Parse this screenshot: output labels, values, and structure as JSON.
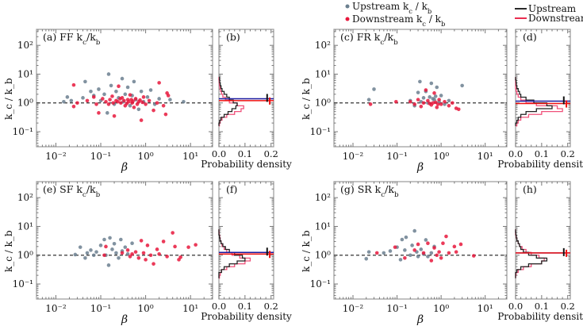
{
  "legend_scatter": [
    {
      "label": "Upstream k_c / k_b",
      "color": "#6b7f8f"
    },
    {
      "label": "Downstream k_c / k_b",
      "color": "#e8173c"
    }
  ],
  "legend_hist": [
    {
      "label": "Upstream",
      "color": "#111111"
    },
    {
      "label": "Downstream",
      "color": "#e8173c"
    }
  ],
  "colors": {
    "upstream": "#6b7f8f",
    "downstream": "#e8173c",
    "mean_up": "#1a1aa0",
    "mean_down": "#ee1111",
    "hist_up": "#222222",
    "hist_down": "#f0507a"
  },
  "chart_data": [
    {
      "type": "scatter",
      "title": "(a) FF k_c/k_b",
      "hist_title": "(b)",
      "xlabel": "β",
      "ylabel": "k_c / k_b",
      "hist_xlabel": "Probability density",
      "xscale": "log",
      "yscale": "log",
      "xlim": [
        0.0037,
        31
      ],
      "ylim": [
        0.03,
        360
      ],
      "hist_xlim": [
        0,
        0.21
      ],
      "reference_line_y": 1,
      "upstream": [
        [
          0.015,
          1.1
        ],
        [
          0.018,
          1.6
        ],
        [
          0.022,
          1.2
        ],
        [
          0.04,
          1.5
        ],
        [
          0.045,
          5.5
        ],
        [
          0.06,
          2.5
        ],
        [
          0.07,
          1.8
        ],
        [
          0.09,
          3
        ],
        [
          0.1,
          1.2
        ],
        [
          0.12,
          2
        ],
        [
          0.14,
          0.45
        ],
        [
          0.15,
          10
        ],
        [
          0.17,
          4
        ],
        [
          0.2,
          0.9
        ],
        [
          0.22,
          2.5
        ],
        [
          0.25,
          1.5
        ],
        [
          0.3,
          7
        ],
        [
          0.32,
          1.1
        ],
        [
          0.35,
          2
        ],
        [
          0.4,
          3.5
        ],
        [
          0.45,
          0.8
        ],
        [
          0.5,
          1.8
        ],
        [
          0.55,
          5.5
        ],
        [
          0.6,
          1.3
        ],
        [
          0.7,
          0.6
        ],
        [
          0.8,
          2.5
        ],
        [
          0.9,
          1.1
        ],
        [
          1.1,
          1.6
        ],
        [
          1.3,
          2.8
        ],
        [
          1.6,
          0.9
        ],
        [
          2,
          1.4
        ],
        [
          3.5,
          1.3
        ],
        [
          7,
          1.1
        ]
      ],
      "downstream": [
        [
          0.025,
          0.75
        ],
        [
          0.025,
          4.2
        ],
        [
          0.03,
          1.0
        ],
        [
          0.05,
          1.2
        ],
        [
          0.07,
          1.6
        ],
        [
          0.08,
          0.9
        ],
        [
          0.09,
          0.45
        ],
        [
          0.11,
          1.4
        ],
        [
          0.13,
          1.1
        ],
        [
          0.15,
          0.9
        ],
        [
          0.18,
          1.7
        ],
        [
          0.2,
          0.35
        ],
        [
          0.22,
          1.2
        ],
        [
          0.25,
          3.8
        ],
        [
          0.28,
          1.0
        ],
        [
          0.3,
          1.5
        ],
        [
          0.35,
          0.8
        ],
        [
          0.4,
          1.3
        ],
        [
          0.45,
          1.9
        ],
        [
          0.5,
          1.0
        ],
        [
          0.55,
          0.7
        ],
        [
          0.6,
          1.4
        ],
        [
          0.7,
          1.1
        ],
        [
          0.8,
          0.25
        ],
        [
          0.9,
          1.6
        ],
        [
          1.0,
          0.9
        ],
        [
          1.2,
          1.2
        ],
        [
          1.5,
          0.55
        ],
        [
          1.8,
          1.0
        ],
        [
          2,
          5
        ],
        [
          2.5,
          0.8
        ],
        [
          2.8,
          0.4
        ],
        [
          3,
          2.2
        ],
        [
          3.2,
          1.8
        ],
        [
          0.16,
          1.3
        ],
        [
          0.19,
          1.0
        ],
        [
          0.24,
          1.1
        ],
        [
          0.27,
          1.4
        ],
        [
          0.33,
          1.2
        ],
        [
          0.38,
          0.95
        ],
        [
          0.42,
          1.1
        ],
        [
          0.48,
          1.3
        ],
        [
          0.52,
          1.15
        ],
        [
          0.65,
          0.9
        ],
        [
          0.75,
          1.25
        ],
        [
          0.85,
          1.05
        ]
      ],
      "hist_log10_bin_centers": [
        -0.75,
        -0.65,
        -0.55,
        -0.45,
        -0.35,
        -0.25,
        -0.15,
        -0.05,
        0.05,
        0.15,
        0.25,
        0.35,
        0.45,
        0.55,
        0.65,
        0.75,
        0.85
      ],
      "hist_upstream": [
        0,
        0.003,
        0.008,
        0.02,
        0.035,
        0.05,
        0.065,
        0.07,
        0.055,
        0.04,
        0.03,
        0.02,
        0.012,
        0.008,
        0.005,
        0.003,
        0.002
      ],
      "hist_downstream": [
        0.002,
        0.005,
        0.012,
        0.03,
        0.06,
        0.085,
        0.095,
        0.07,
        0.04,
        0.025,
        0.015,
        0.01,
        0.006,
        0.004,
        0.002,
        0.001,
        0
      ],
      "mean_upstream": 1.4,
      "mean_downstream": 1.2,
      "xticks": [
        {
          "v": 0.01,
          "label": "10⁻²"
        },
        {
          "v": 0.1,
          "label": "10⁻¹"
        },
        {
          "v": 1,
          "label": "10⁰"
        },
        {
          "v": 10,
          "label": "10¹"
        }
      ],
      "yticks": [
        {
          "v": 0.1,
          "label": "10⁻¹"
        },
        {
          "v": 1,
          "label": "10⁰"
        },
        {
          "v": 10,
          "label": "10¹"
        },
        {
          "v": 100,
          "label": "10²"
        }
      ],
      "hist_xticks": [
        {
          "v": 0,
          "label": "0.0"
        },
        {
          "v": 0.1,
          "label": "0.1"
        },
        {
          "v": 0.2,
          "label": "0.2"
        }
      ]
    },
    {
      "type": "scatter",
      "title": "(c) FR k_c/k_b",
      "hist_title": "(d)",
      "xlabel": "β",
      "ylabel": "k_c / k_b",
      "hist_xlabel": "Probability density",
      "xscale": "log",
      "yscale": "log",
      "xlim": [
        0.0037,
        31
      ],
      "ylim": [
        0.03,
        360
      ],
      "hist_xlim": [
        0,
        0.21
      ],
      "reference_line_y": 1,
      "upstream": [
        [
          0.023,
          1.3
        ],
        [
          0.03,
          3
        ],
        [
          0.2,
          1.2
        ],
        [
          0.25,
          0.8
        ],
        [
          0.3,
          2.3
        ],
        [
          0.33,
          5.5
        ],
        [
          0.4,
          1.5
        ],
        [
          0.45,
          2.5
        ],
        [
          0.5,
          1.0
        ],
        [
          0.55,
          1.6
        ],
        [
          0.6,
          4.8
        ],
        [
          0.7,
          1.3
        ],
        [
          0.8,
          3.5
        ],
        [
          0.9,
          1.1
        ],
        [
          1.0,
          1.8
        ],
        [
          1.2,
          0.9
        ],
        [
          1.5,
          1.2
        ],
        [
          3,
          4
        ],
        [
          0.35,
          1.1
        ],
        [
          0.65,
          1.4
        ],
        [
          0.75,
          1.7
        ]
      ],
      "downstream": [
        [
          0.025,
          0.9
        ],
        [
          0.095,
          1.1
        ],
        [
          0.2,
          1.1
        ],
        [
          0.25,
          0.9
        ],
        [
          0.3,
          1.3
        ],
        [
          0.35,
          0.75
        ],
        [
          0.4,
          1.0
        ],
        [
          0.45,
          2.8
        ],
        [
          0.5,
          1.2
        ],
        [
          0.6,
          0.85
        ],
        [
          0.65,
          1.0
        ],
        [
          0.7,
          2.2
        ],
        [
          0.8,
          0.7
        ],
        [
          0.9,
          1.3
        ],
        [
          1.0,
          0.9
        ],
        [
          1.2,
          1.1
        ],
        [
          1.5,
          0.8
        ],
        [
          1.8,
          1.0
        ],
        [
          2.2,
          0.65
        ],
        [
          2.5,
          0.6
        ],
        [
          0.55,
          0.95
        ],
        [
          0.75,
          1.05
        ],
        [
          0.85,
          0.9
        ]
      ],
      "hist_log10_bin_centers": [
        -0.75,
        -0.65,
        -0.55,
        -0.45,
        -0.35,
        -0.25,
        -0.15,
        -0.05,
        0.05,
        0.15,
        0.25,
        0.35,
        0.45,
        0.55,
        0.65,
        0.75,
        0.85
      ],
      "hist_upstream": [
        0,
        0.005,
        0.01,
        0.02,
        0.04,
        0.08,
        0.14,
        0.12,
        0.07,
        0.04,
        0.02,
        0.015,
        0.01,
        0.005,
        0.003,
        0.002,
        0
      ],
      "hist_downstream": [
        0.005,
        0.01,
        0.02,
        0.05,
        0.1,
        0.18,
        0.16,
        0.08,
        0.04,
        0.02,
        0.01,
        0.005,
        0.002,
        0,
        0,
        0,
        0
      ],
      "mean_upstream": 1.15,
      "mean_downstream": 0.95,
      "xticks": [
        {
          "v": 0.01,
          "label": "10⁻²"
        },
        {
          "v": 0.1,
          "label": "10⁻¹"
        },
        {
          "v": 1,
          "label": "10⁰"
        },
        {
          "v": 10,
          "label": "10¹"
        }
      ],
      "yticks": [
        {
          "v": 0.1,
          "label": "10⁻¹"
        },
        {
          "v": 1,
          "label": "10⁰"
        },
        {
          "v": 10,
          "label": "10¹"
        },
        {
          "v": 100,
          "label": "10²"
        }
      ],
      "hist_xticks": [
        {
          "v": 0,
          "label": "0.0"
        },
        {
          "v": 0.1,
          "label": "0.1"
        },
        {
          "v": 0.2,
          "label": "0.2"
        }
      ]
    },
    {
      "type": "scatter",
      "title": "(e) SF k_c/k_b",
      "hist_title": "(f)",
      "xlabel": "β",
      "ylabel": "k_c / k_b",
      "hist_xlabel": "Probability density",
      "xscale": "log",
      "yscale": "log",
      "xlim": [
        0.0037,
        31
      ],
      "ylim": [
        0.03,
        360
      ],
      "hist_xlim": [
        0,
        0.21
      ],
      "reference_line_y": 1,
      "upstream": [
        [
          0.027,
          1.05
        ],
        [
          0.035,
          1.9
        ],
        [
          0.045,
          0.8
        ],
        [
          0.05,
          1.2
        ],
        [
          0.06,
          1.5
        ],
        [
          0.07,
          1.0
        ],
        [
          0.08,
          1.3
        ],
        [
          0.1,
          2.2
        ],
        [
          0.12,
          3.5
        ],
        [
          0.13,
          1.0
        ],
        [
          0.15,
          0.45
        ],
        [
          0.16,
          4
        ],
        [
          0.18,
          1.6
        ],
        [
          0.2,
          2.5
        ],
        [
          0.22,
          1.2
        ],
        [
          0.25,
          0.8
        ],
        [
          0.28,
          3.5
        ],
        [
          0.3,
          1.4
        ],
        [
          0.35,
          1.9
        ],
        [
          0.4,
          1.1
        ],
        [
          0.5,
          2.6
        ]
      ],
      "downstream": [
        [
          0.12,
          1.0
        ],
        [
          0.13,
          2
        ],
        [
          0.3,
          1.2
        ],
        [
          0.4,
          1.5
        ],
        [
          0.45,
          0.9
        ],
        [
          0.5,
          1.1
        ],
        [
          0.6,
          1.3
        ],
        [
          0.7,
          0.8
        ],
        [
          0.8,
          3.2
        ],
        [
          0.9,
          1.2
        ],
        [
          1.0,
          0.7
        ],
        [
          1.1,
          2.2
        ],
        [
          1.3,
          1.0
        ],
        [
          1.5,
          0.5
        ],
        [
          1.8,
          1.6
        ],
        [
          2,
          1.1
        ],
        [
          2.5,
          3
        ],
        [
          3,
          0.9
        ],
        [
          4,
          6
        ],
        [
          4.5,
          2
        ],
        [
          5.5,
          0.7
        ],
        [
          6,
          0.85
        ],
        [
          9,
          1.9
        ],
        [
          13,
          2.3
        ]
      ],
      "hist_log10_bin_centers": [
        -0.75,
        -0.65,
        -0.55,
        -0.45,
        -0.35,
        -0.25,
        -0.15,
        -0.05,
        0.05,
        0.15,
        0.25,
        0.35,
        0.45,
        0.55,
        0.65,
        0.75,
        0.85
      ],
      "hist_upstream": [
        0,
        0,
        0.01,
        0.02,
        0.04,
        0.07,
        0.1,
        0.09,
        0.06,
        0.04,
        0.025,
        0.015,
        0.008,
        0.004,
        0.002,
        0,
        0
      ],
      "hist_downstream": [
        0.002,
        0.005,
        0.01,
        0.03,
        0.06,
        0.1,
        0.12,
        0.08,
        0.05,
        0.03,
        0.02,
        0.012,
        0.008,
        0.005,
        0.003,
        0.001,
        0
      ],
      "mean_upstream": 1.25,
      "mean_downstream": 1.1,
      "xticks": [
        {
          "v": 0.01,
          "label": "10⁻²"
        },
        {
          "v": 0.1,
          "label": "10⁻¹"
        },
        {
          "v": 1,
          "label": "10⁰"
        },
        {
          "v": 10,
          "label": "10¹"
        }
      ],
      "yticks": [
        {
          "v": 0.1,
          "label": "10⁻¹"
        },
        {
          "v": 1,
          "label": "10⁰"
        },
        {
          "v": 10,
          "label": "10¹"
        },
        {
          "v": 100,
          "label": "10²"
        }
      ],
      "hist_xticks": [
        {
          "v": 0,
          "label": "0.0"
        },
        {
          "v": 0.1,
          "label": "0.1"
        },
        {
          "v": 0.2,
          "label": "0.2"
        }
      ]
    },
    {
      "type": "scatter",
      "title": "(g) SR k_c/k_b",
      "hist_title": "(h)",
      "xlabel": "β",
      "ylabel": "k_c / k_b",
      "hist_xlabel": "Probability density",
      "xscale": "log",
      "yscale": "log",
      "xlim": [
        0.0037,
        31
      ],
      "ylim": [
        0.03,
        360
      ],
      "hist_xlim": [
        0,
        0.21
      ],
      "reference_line_y": 1,
      "upstream": [
        [
          0.02,
          0.75
        ],
        [
          0.023,
          1.3
        ],
        [
          0.05,
          1.2
        ],
        [
          0.07,
          1.4
        ],
        [
          0.1,
          1.9
        ],
        [
          0.12,
          0.7
        ],
        [
          0.13,
          3.5
        ],
        [
          0.15,
          1.5
        ],
        [
          0.16,
          4.2
        ],
        [
          0.2,
          1.0
        ],
        [
          0.22,
          2.2
        ],
        [
          0.25,
          7
        ],
        [
          0.28,
          1.3
        ],
        [
          0.3,
          0.9
        ],
        [
          0.35,
          1.6
        ],
        [
          0.4,
          1.1
        ],
        [
          0.45,
          3.4
        ],
        [
          0.5,
          0.9
        ],
        [
          0.6,
          1.2
        ],
        [
          0.7,
          2
        ]
      ],
      "downstream": [
        [
          0.035,
          1.2
        ],
        [
          0.09,
          1.9
        ],
        [
          0.15,
          0.8
        ],
        [
          0.25,
          1.5
        ],
        [
          0.3,
          2.4
        ],
        [
          0.4,
          1.2
        ],
        [
          0.5,
          2.6
        ],
        [
          0.6,
          0.65
        ],
        [
          0.7,
          1.8
        ],
        [
          0.8,
          1.0
        ],
        [
          0.9,
          1.3
        ],
        [
          1.0,
          0.8
        ],
        [
          1.1,
          2.6
        ],
        [
          1.3,
          4.5
        ],
        [
          1.5,
          1.2
        ],
        [
          2,
          2
        ],
        [
          2.2,
          1.3
        ],
        [
          2.8,
          2.4
        ],
        [
          5.5,
          0.95
        ]
      ],
      "hist_log10_bin_centers": [
        -0.75,
        -0.65,
        -0.55,
        -0.45,
        -0.35,
        -0.25,
        -0.15,
        -0.05,
        0.05,
        0.15,
        0.25,
        0.35,
        0.45,
        0.55,
        0.65,
        0.75,
        0.85
      ],
      "hist_upstream": [
        0,
        0,
        0.005,
        0.02,
        0.05,
        0.1,
        0.12,
        0.08,
        0.05,
        0.03,
        0.02,
        0.015,
        0.01,
        0.005,
        0.003,
        0.001,
        0
      ],
      "hist_downstream": [
        0,
        0.002,
        0.01,
        0.03,
        0.06,
        0.1,
        0.11,
        0.09,
        0.06,
        0.04,
        0.025,
        0.015,
        0.01,
        0.005,
        0.002,
        0,
        0
      ],
      "mean_upstream": 1.2,
      "mean_downstream": 1.2,
      "xticks": [
        {
          "v": 0.01,
          "label": "10⁻²"
        },
        {
          "v": 0.1,
          "label": "10⁻¹"
        },
        {
          "v": 1,
          "label": "10⁰"
        },
        {
          "v": 10,
          "label": "10¹"
        }
      ],
      "yticks": [
        {
          "v": 0.1,
          "label": "10⁻¹"
        },
        {
          "v": 1,
          "label": "10⁰"
        },
        {
          "v": 10,
          "label": "10¹"
        },
        {
          "v": 100,
          "label": "10²"
        }
      ],
      "hist_xticks": [
        {
          "v": 0,
          "label": "0.0"
        },
        {
          "v": 0.1,
          "label": "0.1"
        },
        {
          "v": 0.2,
          "label": "0.2"
        }
      ]
    }
  ]
}
